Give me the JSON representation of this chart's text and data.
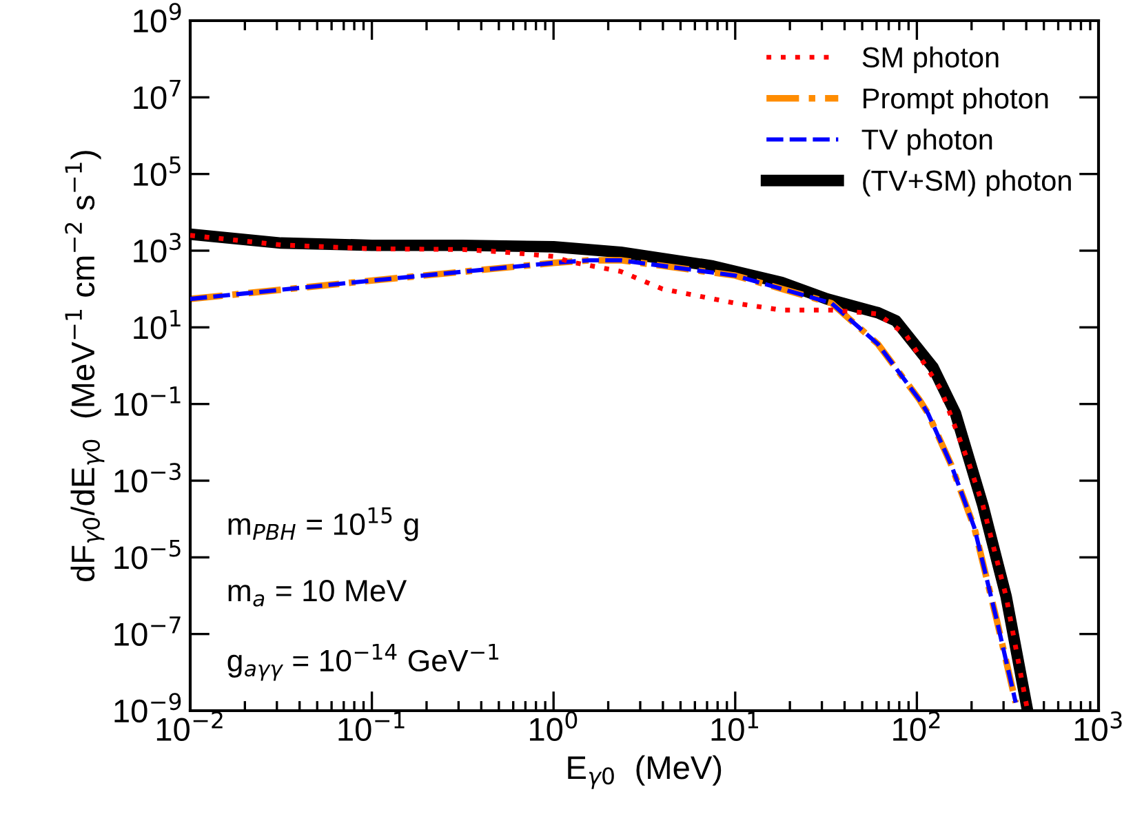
{
  "chart_data": {
    "type": "line",
    "xlabel": "E$_{γ0}$  (MeV)",
    "ylabel": "dF$_{γ0}$/dE$_{γ0}$  (MeV$^{−1}$ cm$^{−2}$ s$^{−1}$)",
    "log": "xy",
    "legend": "top right",
    "grid": false,
    "xlim": [
      0.01,
      1000
    ],
    "ylim": [
      1e-09,
      1000000000.0
    ],
    "xticks": [
      {
        "value": 0.01,
        "label": "10$^{−2}$"
      },
      {
        "value": 0.1,
        "label": "10$^{−1}$"
      },
      {
        "value": 1,
        "label": "10$^{0}$"
      },
      {
        "value": 10,
        "label": "10$^{1}$"
      },
      {
        "value": 100,
        "label": "10$^{2}$"
      },
      {
        "value": 1000,
        "label": "10$^{3}$"
      }
    ],
    "yticks": [
      {
        "value": 1e-09,
        "label": "10$^{−9}$"
      },
      {
        "value": 1e-07,
        "label": "10$^{−7}$"
      },
      {
        "value": 1e-05,
        "label": "10$^{−5}$"
      },
      {
        "value": 0.001,
        "label": "10$^{−3}$"
      },
      {
        "value": 0.1,
        "label": "10$^{−1}$"
      },
      {
        "value": 10,
        "label": "10$^{1}$"
      },
      {
        "value": 1000,
        "label": "10$^{3}$"
      },
      {
        "value": 100000,
        "label": "10$^{5}$"
      },
      {
        "value": 10000000,
        "label": "10$^{7}$"
      },
      {
        "value": 1000000000,
        "label": "10$^{9}$"
      }
    ],
    "series": [
      {
        "name": "SM photon",
        "color": "#ff0000",
        "line_style": "dotted",
        "x": [
          0.01,
          0.0316,
          0.1,
          0.316,
          0.513,
          1,
          1.23,
          2.34,
          3.98,
          10,
          18,
          33.9,
          61.1,
          87.1,
          136,
          194,
          231,
          310,
          403
        ],
        "values": [
          2510,
          1410,
          1120,
          1070,
          933,
          708,
          513,
          288,
          100,
          42.7,
          28.2,
          28.2,
          22.4,
          6.31,
          0.234,
          0.00269,
          0.000224,
          9.55e-07,
          1.26e-09
        ]
      },
      {
        "name": "Prompt photon",
        "color": "#ff8c00",
        "line_style": "dashdot",
        "x": [
          0.01,
          0.0316,
          0.1,
          0.316,
          1,
          1.58,
          2.34,
          10,
          33.9,
          61.1,
          103,
          115,
          154,
          207,
          275,
          350
        ],
        "values": [
          55,
          95.5,
          166,
          282,
          479,
          562,
          562,
          224,
          42.7,
          3.63,
          0.132,
          0.0575,
          0.00269,
          6.03e-05,
          2.34e-07,
          1.62e-09
        ]
      },
      {
        "name": "TV photon",
        "color": "#0000ff",
        "line_style": "dashed",
        "x": [
          0.01,
          0.0316,
          0.1,
          0.316,
          1,
          1.58,
          2.34,
          10,
          33.9,
          61.1,
          103,
          115,
          154,
          207,
          275,
          350
        ],
        "values": [
          55,
          95.5,
          166,
          282,
          479,
          562,
          562,
          224,
          42.7,
          3.63,
          0.132,
          0.0575,
          0.00269,
          6.03e-05,
          2.34e-07,
          1.62e-09
        ]
      },
      {
        "name": "(TV+SM) photon",
        "color": "#000000",
        "line_style": "solid",
        "x": [
          0.01,
          0.0316,
          0.1,
          0.316,
          1,
          2.34,
          7.52,
          18,
          32,
          61.1,
          76.7,
          123,
          163,
          231,
          310,
          403
        ],
        "values": [
          2690,
          1580,
          1380,
          1380,
          1260,
          912,
          398,
          148,
          55,
          24,
          14.8,
          0.891,
          0.0575,
          0.000224,
          9.55e-07,
          1.26e-09
        ]
      }
    ],
    "annotations": [
      "m$_{PBH}$ = 10$^{15}$ g",
      "m$_{a}$ = 10 MeV",
      "g$_{aγγ}$ = 10$^{−14}$ GeV$^{−1}$"
    ]
  }
}
